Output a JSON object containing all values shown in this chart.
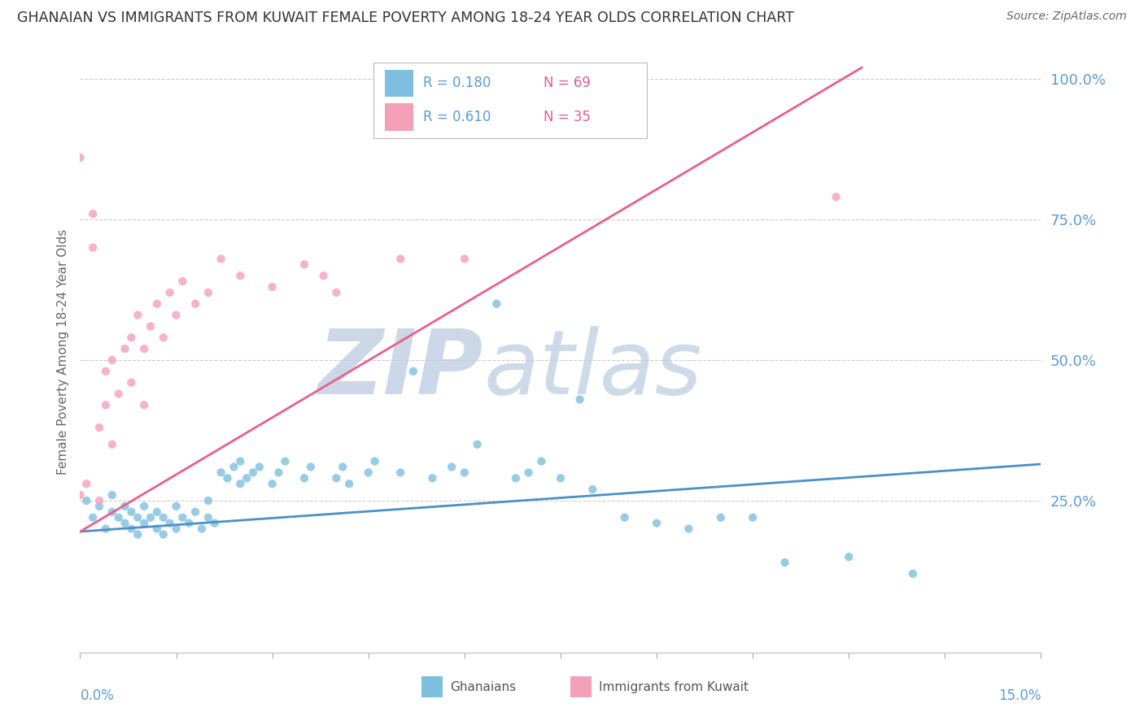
{
  "title": "GHANAIAN VS IMMIGRANTS FROM KUWAIT FEMALE POVERTY AMONG 18-24 YEAR OLDS CORRELATION CHART",
  "source": "Source: ZipAtlas.com",
  "ylabel": "Female Poverty Among 18-24 Year Olds",
  "x_min": 0.0,
  "x_max": 0.15,
  "y_min": -0.02,
  "y_max": 1.05,
  "legend_r1": "R = 0.180",
  "legend_n1": "N = 69",
  "legend_r2": "R = 0.610",
  "legend_n2": "N = 35",
  "blue_color": "#7fbfdf",
  "pink_color": "#f4a0b8",
  "line_blue": "#4a90c8",
  "line_pink": "#e8608a",
  "text_blue": "#5b9bd5",
  "text_pink": "#e05f9a",
  "watermark_zip": "ZIP",
  "watermark_atlas": "atlas",
  "watermark_color": "#ccd8e8",
  "grid_color": "#cccccc",
  "blue_x": [
    0.001,
    0.002,
    0.003,
    0.004,
    0.005,
    0.005,
    0.006,
    0.007,
    0.007,
    0.008,
    0.008,
    0.009,
    0.009,
    0.01,
    0.01,
    0.011,
    0.012,
    0.012,
    0.013,
    0.013,
    0.014,
    0.015,
    0.015,
    0.016,
    0.017,
    0.018,
    0.019,
    0.02,
    0.02,
    0.021,
    0.022,
    0.023,
    0.024,
    0.025,
    0.025,
    0.026,
    0.027,
    0.028,
    0.03,
    0.031,
    0.032,
    0.035,
    0.036,
    0.04,
    0.041,
    0.042,
    0.045,
    0.046,
    0.05,
    0.052,
    0.055,
    0.058,
    0.06,
    0.062,
    0.065,
    0.068,
    0.07,
    0.072,
    0.075,
    0.078,
    0.08,
    0.085,
    0.09,
    0.095,
    0.1,
    0.105,
    0.11,
    0.12,
    0.13
  ],
  "blue_y": [
    0.25,
    0.22,
    0.24,
    0.2,
    0.23,
    0.26,
    0.22,
    0.21,
    0.24,
    0.2,
    0.23,
    0.19,
    0.22,
    0.21,
    0.24,
    0.22,
    0.2,
    0.23,
    0.19,
    0.22,
    0.21,
    0.2,
    0.24,
    0.22,
    0.21,
    0.23,
    0.2,
    0.22,
    0.25,
    0.21,
    0.3,
    0.29,
    0.31,
    0.28,
    0.32,
    0.29,
    0.3,
    0.31,
    0.28,
    0.3,
    0.32,
    0.29,
    0.31,
    0.29,
    0.31,
    0.28,
    0.3,
    0.32,
    0.3,
    0.48,
    0.29,
    0.31,
    0.3,
    0.35,
    0.6,
    0.29,
    0.3,
    0.32,
    0.29,
    0.43,
    0.27,
    0.22,
    0.21,
    0.2,
    0.22,
    0.22,
    0.14,
    0.15,
    0.12
  ],
  "pink_x": [
    0.0,
    0.0,
    0.001,
    0.002,
    0.002,
    0.003,
    0.003,
    0.004,
    0.004,
    0.005,
    0.005,
    0.006,
    0.007,
    0.008,
    0.008,
    0.009,
    0.01,
    0.01,
    0.011,
    0.012,
    0.013,
    0.014,
    0.015,
    0.016,
    0.018,
    0.02,
    0.022,
    0.025,
    0.03,
    0.035,
    0.038,
    0.04,
    0.05,
    0.06,
    0.118
  ],
  "pink_y": [
    0.26,
    0.86,
    0.28,
    0.7,
    0.76,
    0.25,
    0.38,
    0.42,
    0.48,
    0.35,
    0.5,
    0.44,
    0.52,
    0.46,
    0.54,
    0.58,
    0.42,
    0.52,
    0.56,
    0.6,
    0.54,
    0.62,
    0.58,
    0.64,
    0.6,
    0.62,
    0.68,
    0.65,
    0.63,
    0.67,
    0.65,
    0.62,
    0.68,
    0.68,
    0.79
  ],
  "blue_line_x": [
    0.0,
    0.15
  ],
  "blue_line_y": [
    0.195,
    0.315
  ],
  "pink_line_x": [
    0.0,
    0.122
  ],
  "pink_line_y": [
    0.195,
    1.02
  ]
}
